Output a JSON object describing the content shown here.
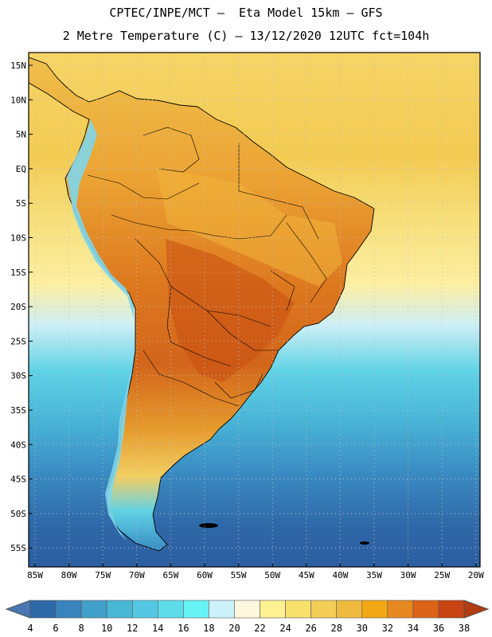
{
  "header": {
    "line1": "CPTEC/INPE/MCT –  Eta Model 15km – GFS",
    "line2": "2 Metre Temperature (C) – 13/12/2020 12UTC fct=104h"
  },
  "axes": {
    "lat_labels": [
      "15N",
      "10N",
      "5N",
      "EQ",
      "5S",
      "10S",
      "15S",
      "20S",
      "25S",
      "30S",
      "35S",
      "40S",
      "45S",
      "50S",
      "55S"
    ],
    "lon_labels": [
      "85W",
      "80W",
      "75W",
      "70W",
      "65W",
      "60W",
      "55W",
      "50W",
      "45W",
      "40W",
      "35W",
      "30W",
      "25W",
      "20W"
    ]
  },
  "colorbar": {
    "labels": [
      "4",
      "6",
      "8",
      "10",
      "12",
      "14",
      "16",
      "18",
      "20",
      "22",
      "24",
      "26",
      "28",
      "30",
      "32",
      "34",
      "36",
      "38"
    ],
    "colors": [
      "#4a76b2",
      "#2f6aa8",
      "#3a84bd",
      "#41a0c9",
      "#49b7d6",
      "#54c8e2",
      "#5fdcea",
      "#66f3f6",
      "#cdf2fb",
      "#fdf7de",
      "#fdf192",
      "#f8e06d",
      "#f3cd56",
      "#efbb3f",
      "#f2a714",
      "#e78820",
      "#dc6419",
      "#c84412",
      "#b23c10"
    ]
  },
  "colors": {
    "ocean_cold": "#2c5ea1",
    "ocean_cool": "#3a8ac2",
    "ocean_mid": "#5ed2e6",
    "ocean_warm": "#fdefa0",
    "ocean_tropic": "#f4ce57",
    "land_hot": "#d2651b",
    "land_warm": "#e89428",
    "land_mild": "#f2b93e",
    "andes_cold": "#7fd6ea"
  }
}
